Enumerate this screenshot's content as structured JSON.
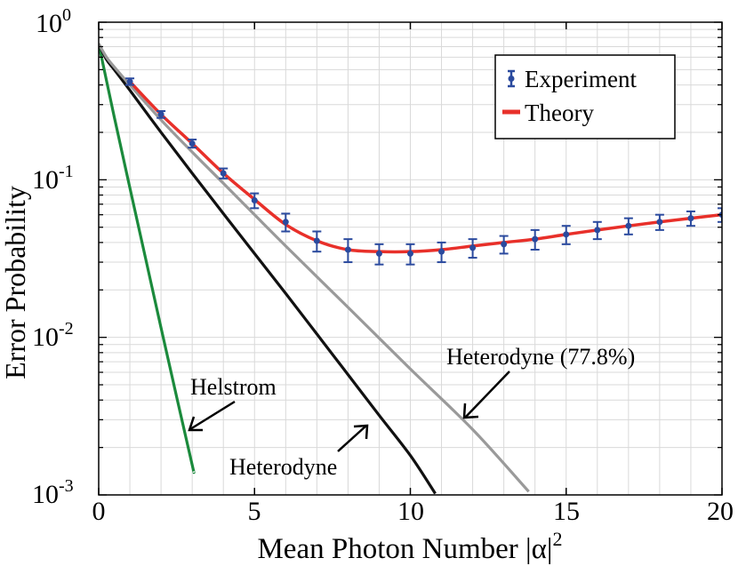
{
  "chart_data": {
    "type": "line",
    "xlabel_main": "Mean Photon Number |α|",
    "xlabel_sup": "2",
    "ylabel": "Error Probability",
    "xlim": [
      0,
      20
    ],
    "ylim": [
      0.001,
      1
    ],
    "yscale": "log",
    "grid": true,
    "x_ticks": [
      {
        "value": 0,
        "label": "0"
      },
      {
        "value": 5,
        "label": "5"
      },
      {
        "value": 10,
        "label": "10"
      },
      {
        "value": 15,
        "label": "15"
      },
      {
        "value": 20,
        "label": "20"
      }
    ],
    "y_ticks": [
      {
        "exp": 0,
        "base": "10",
        "sup": "0"
      },
      {
        "exp": -1,
        "base": "10",
        "sup": "-1"
      },
      {
        "exp": -2,
        "base": "10",
        "sup": "-2"
      },
      {
        "exp": -3,
        "base": "10",
        "sup": "-3"
      }
    ],
    "legend": {
      "placement": "top-right",
      "entries": [
        {
          "label": "Experiment",
          "kind": "errorbar",
          "color": "#2b4a9e"
        },
        {
          "label": "Theory",
          "kind": "line",
          "color": "#e8302a"
        }
      ]
    },
    "series": [
      {
        "name": "Helstrom",
        "color": "#1b8a3c",
        "x": [
          0,
          0.5,
          1,
          1.5,
          2,
          2.5,
          3,
          3.05
        ],
        "y": [
          0.73,
          0.25,
          0.089,
          0.032,
          0.0115,
          0.0042,
          0.00155,
          0.00141
        ]
      },
      {
        "name": "Heterodyne",
        "color": "#111111",
        "x": [
          0,
          0.25,
          0.5,
          1,
          2,
          3,
          4,
          5,
          6,
          7,
          8,
          9,
          10,
          10.8
        ],
        "y": [
          0.73,
          0.58,
          0.5,
          0.37,
          0.2,
          0.11,
          0.061,
          0.034,
          0.019,
          0.0105,
          0.0058,
          0.0032,
          0.00178,
          0.00102
        ]
      },
      {
        "name": "Heterodyne (77.8%)",
        "color": "#9a9a9a",
        "x": [
          0,
          0.25,
          0.5,
          1,
          2,
          3,
          4,
          5,
          6,
          8,
          10,
          12,
          13.8
        ],
        "y": [
          0.73,
          0.6,
          0.52,
          0.4,
          0.24,
          0.15,
          0.095,
          0.06,
          0.038,
          0.0155,
          0.0063,
          0.0026,
          0.00105
        ]
      },
      {
        "name": "Theory",
        "color": "#e8302a",
        "x": [
          1,
          2,
          3,
          4,
          5,
          6,
          7,
          8,
          9,
          10,
          11,
          12,
          13,
          14,
          15,
          16,
          17,
          18,
          19,
          20
        ],
        "y": [
          0.42,
          0.26,
          0.17,
          0.11,
          0.075,
          0.052,
          0.041,
          0.036,
          0.035,
          0.035,
          0.036,
          0.038,
          0.04,
          0.042,
          0.045,
          0.048,
          0.051,
          0.054,
          0.057,
          0.06
        ]
      },
      {
        "name": "Experiment",
        "color": "#2b4a9e",
        "x": [
          1,
          2,
          3,
          4,
          5,
          6,
          7,
          8,
          9,
          10,
          11,
          12,
          13,
          14,
          15,
          16,
          17,
          18,
          19,
          20
        ],
        "y": [
          0.42,
          0.26,
          0.17,
          0.11,
          0.074,
          0.054,
          0.041,
          0.036,
          0.034,
          0.034,
          0.035,
          0.037,
          0.039,
          0.042,
          0.045,
          0.048,
          0.051,
          0.054,
          0.057,
          0.06
        ],
        "err": [
          0.02,
          0.013,
          0.01,
          0.008,
          0.008,
          0.007,
          0.006,
          0.006,
          0.005,
          0.005,
          0.005,
          0.005,
          0.005,
          0.006,
          0.006,
          0.006,
          0.006,
          0.006,
          0.006,
          0.006
        ]
      }
    ],
    "annotations": [
      {
        "text": "Helstrom",
        "points_to": "Helstrom"
      },
      {
        "text": "Heterodyne",
        "points_to": "Heterodyne"
      },
      {
        "text": "Heterodyne (77.8%)",
        "points_to": "Heterodyne (77.8%)"
      }
    ]
  }
}
